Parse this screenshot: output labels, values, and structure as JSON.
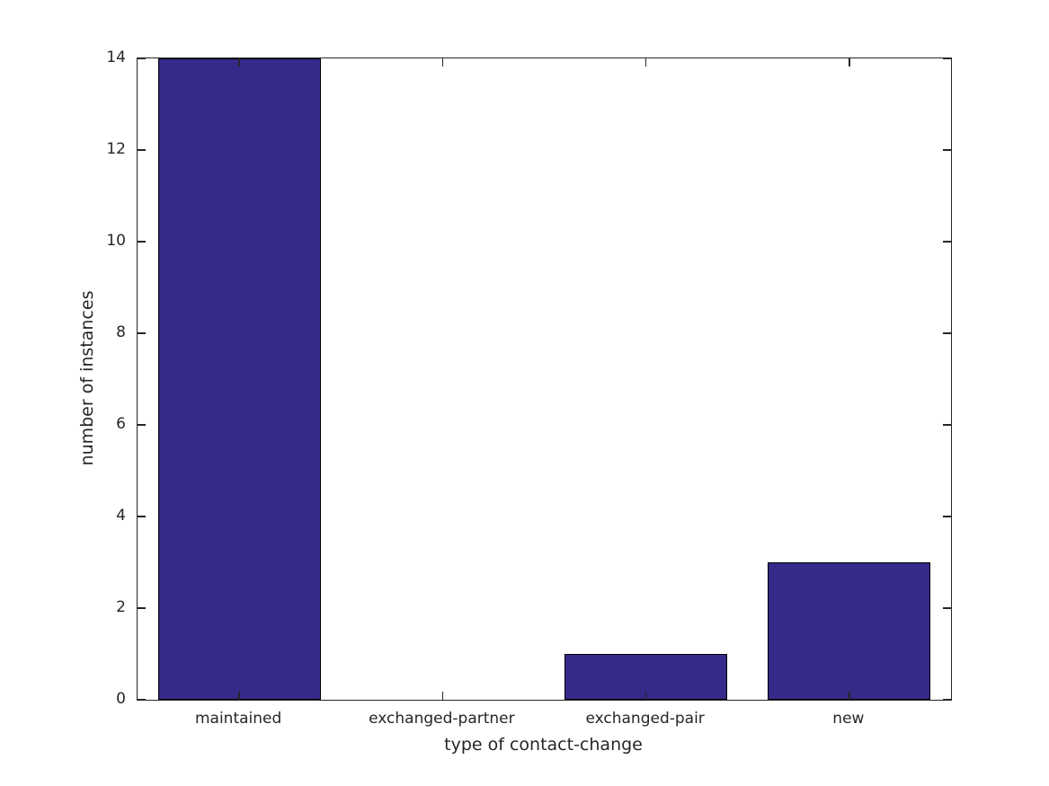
{
  "figure": {
    "background": "#ffffff"
  },
  "chart_data": {
    "type": "bar",
    "title": "",
    "categories": [
      "maintained",
      "exchanged-partner",
      "exchanged-pair",
      "new"
    ],
    "values": [
      14,
      0,
      1,
      3
    ],
    "xlabel": "type of contact-change",
    "ylabel": "number of instances",
    "ylim": [
      0,
      14
    ],
    "yticks": [
      0,
      2,
      4,
      6,
      8,
      10,
      12,
      14
    ],
    "bar_width_fraction": 0.8,
    "bar_color": "#352a87",
    "bar_edge_color": "#000000",
    "axis_color": "#262626",
    "text_color": "#262626",
    "grid": false,
    "legend": "none",
    "box": true,
    "tick_direction": "in"
  }
}
